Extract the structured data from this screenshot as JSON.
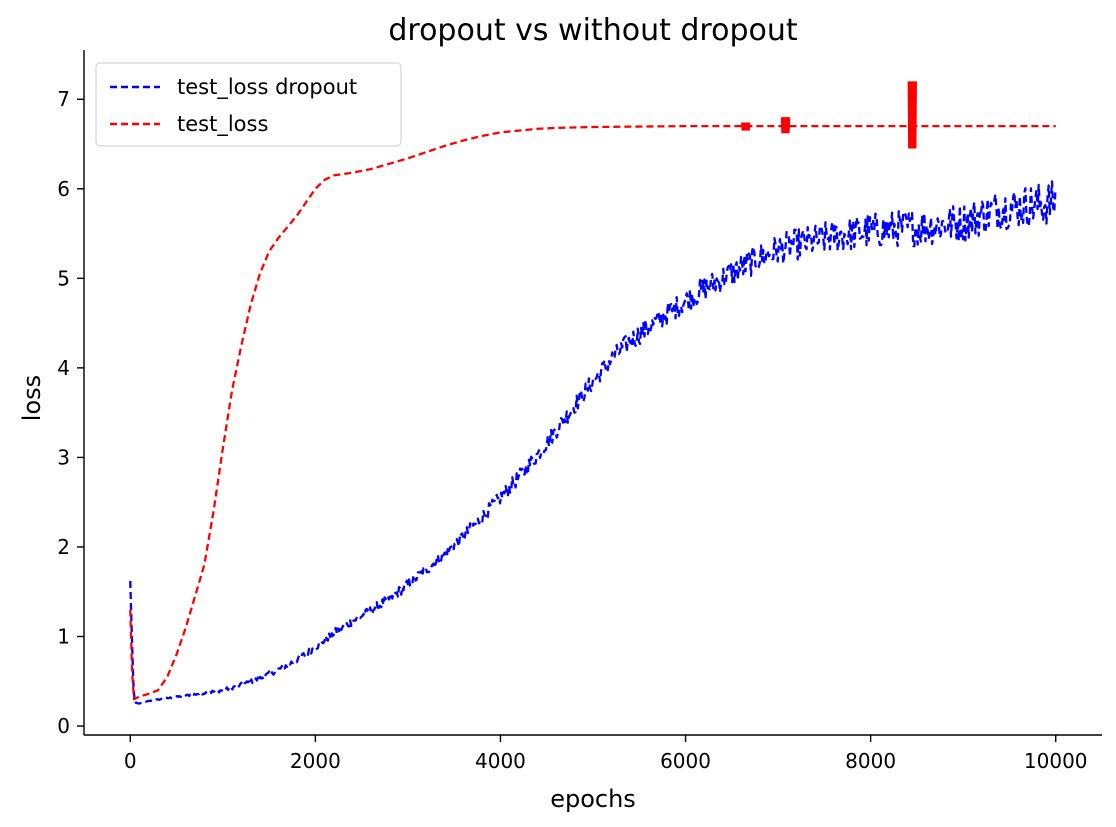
{
  "chart_data": {
    "type": "line",
    "title": "dropout vs without dropout",
    "xlabel": "epochs",
    "ylabel": "loss",
    "xlim": [
      -500,
      10500
    ],
    "ylim": [
      -0.1,
      7.55
    ],
    "xticks": [
      0,
      2000,
      4000,
      6000,
      8000,
      10000
    ],
    "xtick_labels": [
      "0",
      "2000",
      "4000",
      "6000",
      "8000",
      "10000"
    ],
    "yticks": [
      0,
      1,
      2,
      3,
      4,
      5,
      6,
      7
    ],
    "ytick_labels": [
      "0",
      "1",
      "2",
      "3",
      "4",
      "5",
      "6",
      "7"
    ],
    "grid": false,
    "legend_position": "upper-left",
    "series": [
      {
        "name": "test_loss dropout",
        "color": "#0000ff",
        "line_style": "dashed",
        "noise_amplitude": [
          [
            0,
            0.0
          ],
          [
            1000,
            0.02
          ],
          [
            2000,
            0.04
          ],
          [
            3000,
            0.06
          ],
          [
            4000,
            0.08
          ],
          [
            5000,
            0.1
          ],
          [
            6000,
            0.13
          ],
          [
            7000,
            0.17
          ],
          [
            8000,
            0.2
          ],
          [
            9000,
            0.22
          ],
          [
            10000,
            0.25
          ]
        ],
        "points": [
          [
            0,
            1.62
          ],
          [
            20,
            0.9
          ],
          [
            40,
            0.3
          ],
          [
            60,
            0.26
          ],
          [
            100,
            0.25
          ],
          [
            200,
            0.28
          ],
          [
            400,
            0.31
          ],
          [
            600,
            0.34
          ],
          [
            800,
            0.37
          ],
          [
            1000,
            0.4
          ],
          [
            1200,
            0.46
          ],
          [
            1400,
            0.53
          ],
          [
            1600,
            0.63
          ],
          [
            1800,
            0.74
          ],
          [
            2000,
            0.88
          ],
          [
            2200,
            1.04
          ],
          [
            2400,
            1.17
          ],
          [
            2600,
            1.29
          ],
          [
            2800,
            1.42
          ],
          [
            3000,
            1.58
          ],
          [
            3200,
            1.75
          ],
          [
            3400,
            1.92
          ],
          [
            3600,
            2.12
          ],
          [
            3800,
            2.33
          ],
          [
            4000,
            2.55
          ],
          [
            4200,
            2.78
          ],
          [
            4400,
            3.03
          ],
          [
            4600,
            3.3
          ],
          [
            4800,
            3.58
          ],
          [
            5000,
            3.85
          ],
          [
            5200,
            4.1
          ],
          [
            5400,
            4.3
          ],
          [
            5600,
            4.45
          ],
          [
            5800,
            4.6
          ],
          [
            6000,
            4.75
          ],
          [
            6200,
            4.88
          ],
          [
            6400,
            5.0
          ],
          [
            6600,
            5.12
          ],
          [
            6800,
            5.23
          ],
          [
            7000,
            5.32
          ],
          [
            7200,
            5.38
          ],
          [
            7400,
            5.42
          ],
          [
            7600,
            5.47
          ],
          [
            7800,
            5.5
          ],
          [
            8000,
            5.53
          ],
          [
            8200,
            5.55
          ],
          [
            8400,
            5.56
          ],
          [
            8600,
            5.58
          ],
          [
            8800,
            5.6
          ],
          [
            9000,
            5.63
          ],
          [
            9200,
            5.7
          ],
          [
            9400,
            5.78
          ],
          [
            9600,
            5.8
          ],
          [
            9800,
            5.82
          ],
          [
            10000,
            5.85
          ]
        ]
      },
      {
        "name": "test_loss",
        "color": "#ff0000",
        "line_style": "dashed",
        "points": [
          [
            0,
            1.3
          ],
          [
            20,
            0.6
          ],
          [
            40,
            0.3
          ],
          [
            100,
            0.33
          ],
          [
            200,
            0.36
          ],
          [
            300,
            0.4
          ],
          [
            400,
            0.55
          ],
          [
            500,
            0.8
          ],
          [
            600,
            1.1
          ],
          [
            700,
            1.45
          ],
          [
            800,
            1.8
          ],
          [
            900,
            2.4
          ],
          [
            1000,
            3.1
          ],
          [
            1100,
            3.75
          ],
          [
            1200,
            4.25
          ],
          [
            1300,
            4.7
          ],
          [
            1400,
            5.05
          ],
          [
            1500,
            5.3
          ],
          [
            1600,
            5.45
          ],
          [
            1800,
            5.7
          ],
          [
            2000,
            6.0
          ],
          [
            2100,
            6.1
          ],
          [
            2200,
            6.15
          ],
          [
            2400,
            6.18
          ],
          [
            2600,
            6.22
          ],
          [
            2800,
            6.28
          ],
          [
            3000,
            6.34
          ],
          [
            3200,
            6.41
          ],
          [
            3400,
            6.48
          ],
          [
            3600,
            6.54
          ],
          [
            3800,
            6.59
          ],
          [
            4000,
            6.63
          ],
          [
            4200,
            6.65
          ],
          [
            4400,
            6.67
          ],
          [
            4600,
            6.68
          ],
          [
            5000,
            6.69
          ],
          [
            6000,
            6.7
          ],
          [
            10000,
            6.7
          ]
        ],
        "spikes": [
          {
            "x": 6650,
            "low": 6.65,
            "high": 6.74
          },
          {
            "x": 7080,
            "low": 6.62,
            "high": 6.8
          },
          {
            "x": 8450,
            "low": 6.45,
            "high": 7.2
          }
        ]
      }
    ]
  }
}
